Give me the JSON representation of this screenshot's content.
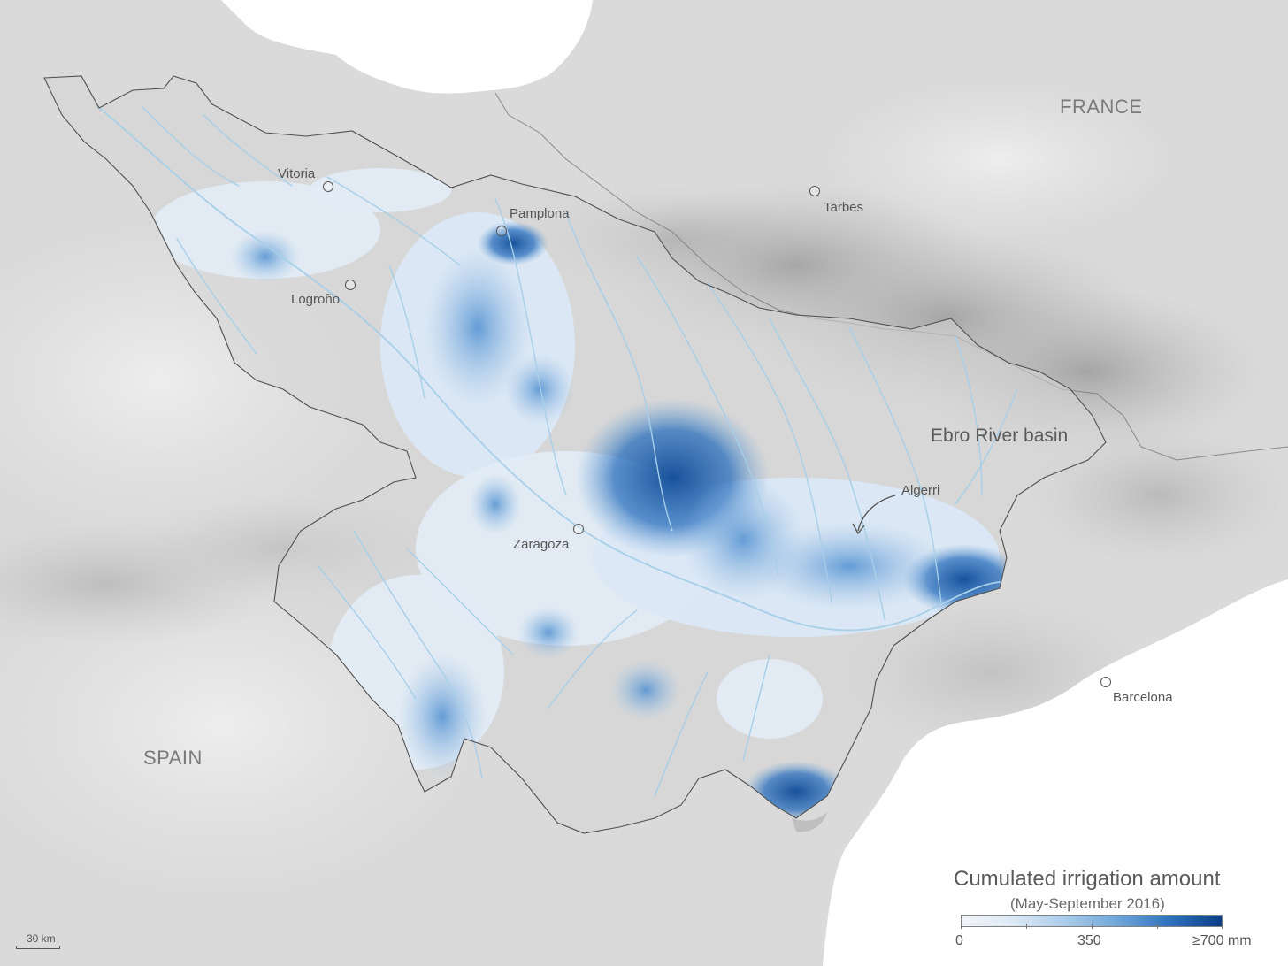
{
  "map": {
    "countries": [
      "FRANCE",
      "SPAIN"
    ],
    "basin_name": "Ebro River basin",
    "cities": [
      "Vitoria",
      "Pamplona",
      "Tarbes",
      "Logroño",
      "Zaragoza",
      "Algerri",
      "Barcelona"
    ],
    "icons": {
      "city_marker": "city-circle-icon",
      "pointer": "curved-arrow-icon"
    },
    "colors": {
      "background_relief": "#dcdcdc",
      "sea": "#ffffff",
      "rivers": "#a7cfe8",
      "basin_outline": "#555555",
      "irrigation_low": "#e6eef7",
      "irrigation_high": "#0b3f86"
    }
  },
  "legend": {
    "title": "Cumulated irrigation amount",
    "subtitle": "(May-September 2016)",
    "min_label": "0",
    "mid_label": "350",
    "max_label": "≥700 mm"
  },
  "scale": {
    "label": "30 km"
  }
}
